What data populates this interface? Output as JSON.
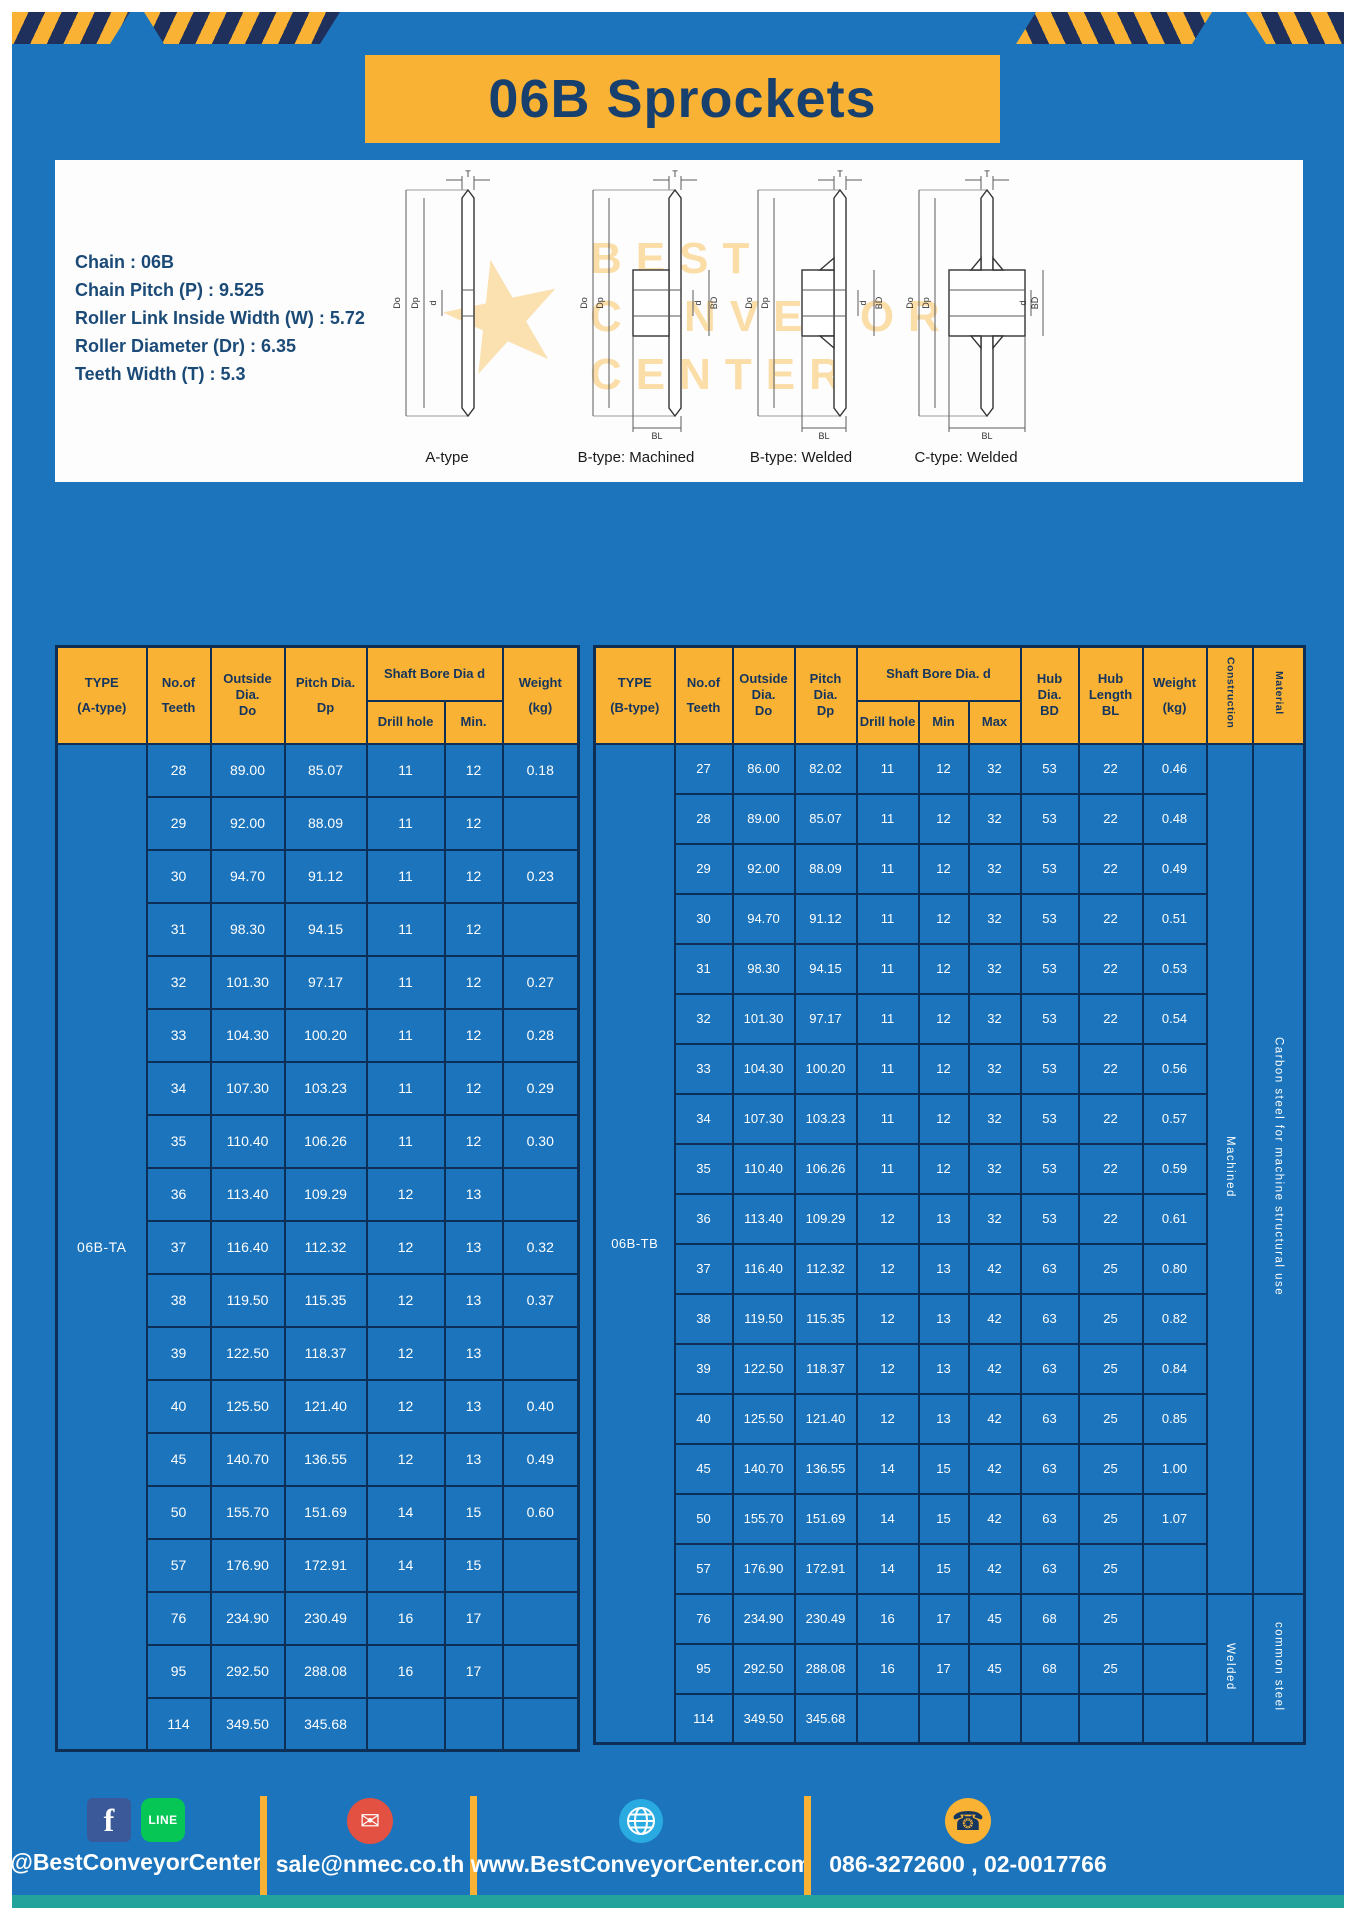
{
  "title": "06B Sprockets",
  "specs": {
    "lines": [
      "Chain  : 06B",
      "Chain Pitch (P)  :  9.525",
      "Roller Link Inside Width (W)  :  5.72",
      "Roller Diameter (Dr)  :  6.35",
      "Teeth Width (T)  :  5.3"
    ]
  },
  "watermark": {
    "line1": "BEST",
    "line2": "CONVEYOR",
    "line3": "CENTER",
    "star": "★"
  },
  "diagrams": [
    {
      "caption": "A-type",
      "dims": {
        "t": "T",
        "do": "Do",
        "dp": "Dp",
        "d": "d"
      }
    },
    {
      "caption": "B-type: Machined",
      "dims": {
        "t": "T",
        "do": "Do",
        "dp": "Dp",
        "d": "d",
        "bd": "BD",
        "bl": "BL"
      }
    },
    {
      "caption": "B-type: Welded",
      "dims": {
        "t": "T",
        "do": "Do",
        "dp": "Dp",
        "d": "d",
        "bd": "BD",
        "bl": "BL"
      }
    },
    {
      "caption": "C-type: Welded",
      "dims": {
        "t": "T",
        "do": "Do",
        "dp": "Dp",
        "d": "d",
        "bd": "BD",
        "bl": "BL"
      }
    }
  ],
  "table_a": {
    "type_label": "06B-TA",
    "header": {
      "type1": "TYPE",
      "type2": "(A-type)",
      "teeth1": "No.of",
      "teeth2": "Teeth",
      "od1": "Outside",
      "od2": "Dia.",
      "od3": "Do",
      "pd1": "Pitch Dia.",
      "pd2": "Dp",
      "bore": "Shaft Bore Dia d",
      "drill": "Drill hole",
      "min": "Min.",
      "wt1": "Weight",
      "wt2": "(kg)"
    },
    "rows": [
      [
        "28",
        "89.00",
        "85.07",
        "11",
        "12",
        "0.18"
      ],
      [
        "29",
        "92.00",
        "88.09",
        "11",
        "12",
        ""
      ],
      [
        "30",
        "94.70",
        "91.12",
        "11",
        "12",
        "0.23"
      ],
      [
        "31",
        "98.30",
        "94.15",
        "11",
        "12",
        ""
      ],
      [
        "32",
        "101.30",
        "97.17",
        "11",
        "12",
        "0.27"
      ],
      [
        "33",
        "104.30",
        "100.20",
        "11",
        "12",
        "0.28"
      ],
      [
        "34",
        "107.30",
        "103.23",
        "11",
        "12",
        "0.29"
      ],
      [
        "35",
        "110.40",
        "106.26",
        "11",
        "12",
        "0.30"
      ],
      [
        "36",
        "113.40",
        "109.29",
        "12",
        "13",
        ""
      ],
      [
        "37",
        "116.40",
        "112.32",
        "12",
        "13",
        "0.32"
      ],
      [
        "38",
        "119.50",
        "115.35",
        "12",
        "13",
        "0.37"
      ],
      [
        "39",
        "122.50",
        "118.37",
        "12",
        "13",
        ""
      ],
      [
        "40",
        "125.50",
        "121.40",
        "12",
        "13",
        "0.40"
      ],
      [
        "45",
        "140.70",
        "136.55",
        "12",
        "13",
        "0.49"
      ],
      [
        "50",
        "155.70",
        "151.69",
        "14",
        "15",
        "0.60"
      ],
      [
        "57",
        "176.90",
        "172.91",
        "14",
        "15",
        ""
      ],
      [
        "76",
        "234.90",
        "230.49",
        "16",
        "17",
        ""
      ],
      [
        "95",
        "292.50",
        "288.08",
        "16",
        "17",
        ""
      ],
      [
        "114",
        "349.50",
        "345.68",
        "",
        "",
        ""
      ]
    ]
  },
  "table_b": {
    "type_label": "06B-TB",
    "header": {
      "type1": "TYPE",
      "type2": "(B-type)",
      "teeth1": "No.of",
      "teeth2": "Teeth",
      "od1": "Outside",
      "od2": "Dia.",
      "od3": "Do",
      "pd1": "Pitch",
      "pd2": "Dia.",
      "pd3": "Dp",
      "bore": "Shaft Bore Dia. d",
      "drill": "Drill hole",
      "min": "Min",
      "max": "Max",
      "hubd1": "Hub",
      "hubd2": "Dia.",
      "hubd3": "BD",
      "hubl1": "Hub",
      "hubl2": "Length",
      "hubl3": "BL",
      "wt1": "Weight",
      "wt2": "(kg)",
      "construction": "Construction",
      "material": "Material"
    },
    "rows": [
      [
        "27",
        "86.00",
        "82.02",
        "11",
        "12",
        "32",
        "53",
        "22",
        "0.46"
      ],
      [
        "28",
        "89.00",
        "85.07",
        "11",
        "12",
        "32",
        "53",
        "22",
        "0.48"
      ],
      [
        "29",
        "92.00",
        "88.09",
        "11",
        "12",
        "32",
        "53",
        "22",
        "0.49"
      ],
      [
        "30",
        "94.70",
        "91.12",
        "11",
        "12",
        "32",
        "53",
        "22",
        "0.51"
      ],
      [
        "31",
        "98.30",
        "94.15",
        "11",
        "12",
        "32",
        "53",
        "22",
        "0.53"
      ],
      [
        "32",
        "101.30",
        "97.17",
        "11",
        "12",
        "32",
        "53",
        "22",
        "0.54"
      ],
      [
        "33",
        "104.30",
        "100.20",
        "11",
        "12",
        "32",
        "53",
        "22",
        "0.56"
      ],
      [
        "34",
        "107.30",
        "103.23",
        "11",
        "12",
        "32",
        "53",
        "22",
        "0.57"
      ],
      [
        "35",
        "110.40",
        "106.26",
        "11",
        "12",
        "32",
        "53",
        "22",
        "0.59"
      ],
      [
        "36",
        "113.40",
        "109.29",
        "12",
        "13",
        "32",
        "53",
        "22",
        "0.61"
      ],
      [
        "37",
        "116.40",
        "112.32",
        "12",
        "13",
        "42",
        "63",
        "25",
        "0.80"
      ],
      [
        "38",
        "119.50",
        "115.35",
        "12",
        "13",
        "42",
        "63",
        "25",
        "0.82"
      ],
      [
        "39",
        "122.50",
        "118.37",
        "12",
        "13",
        "42",
        "63",
        "25",
        "0.84"
      ],
      [
        "40",
        "125.50",
        "121.40",
        "12",
        "13",
        "42",
        "63",
        "25",
        "0.85"
      ],
      [
        "45",
        "140.70",
        "136.55",
        "14",
        "15",
        "42",
        "63",
        "25",
        "1.00"
      ],
      [
        "50",
        "155.70",
        "151.69",
        "14",
        "15",
        "42",
        "63",
        "25",
        "1.07"
      ],
      [
        "57",
        "176.90",
        "172.91",
        "14",
        "15",
        "42",
        "63",
        "25",
        ""
      ],
      [
        "76",
        "234.90",
        "230.49",
        "16",
        "17",
        "45",
        "68",
        "25",
        ""
      ],
      [
        "95",
        "292.50",
        "288.08",
        "16",
        "17",
        "45",
        "68",
        "25",
        ""
      ],
      [
        "114",
        "349.50",
        "345.68",
        "",
        "",
        "",
        "",
        "",
        ""
      ]
    ],
    "construction_groups": [
      {
        "label": "Machined",
        "rows": 17
      },
      {
        "label": "Welded",
        "rows": 3
      }
    ],
    "material_groups": [
      {
        "label": "Carbon steel for machine structural use",
        "rows": 17
      },
      {
        "label": "common steel",
        "rows": 3
      }
    ]
  },
  "footer": {
    "social_handle": "@BestConveyorCenter",
    "line_label": "LINE",
    "facebook_glyph": "f",
    "email_glyph": "✉",
    "phone_glyph": "☎",
    "email": "sale@nmec.co.th",
    "website": "www.BestConveyorCenter.com",
    "phones": "086-3272600 , 02-0017766"
  },
  "colors": {
    "page_blue": "#1b74bc",
    "accent_yellow": "#f9b233",
    "navy": "#15355e",
    "teal_strip": "#23a39b",
    "facebook_blue": "#3b5998",
    "line_green": "#06c755",
    "email_red": "#e25141",
    "globe_cyan": "#29abe2"
  }
}
